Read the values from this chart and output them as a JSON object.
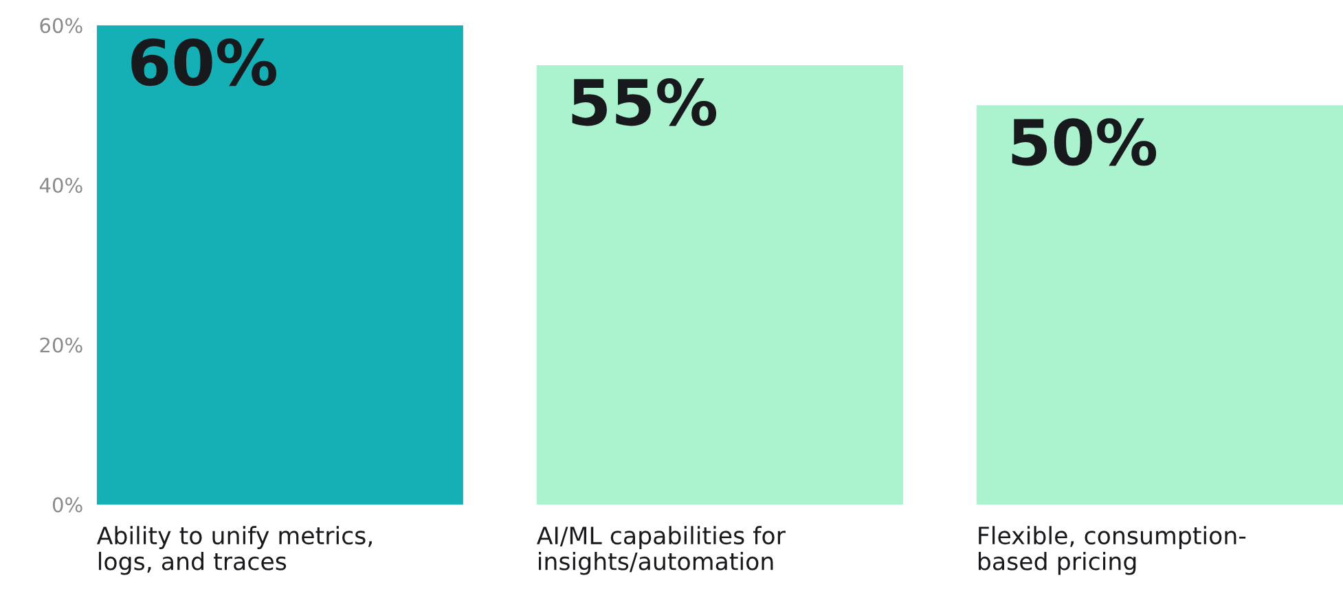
{
  "chart_data": {
    "type": "bar",
    "categories": [
      "Ability to unify metrics,\nlogs, and traces",
      "AI/ML capabilities for\ninsights/automation",
      "Flexible, consumption-\nbased pricing"
    ],
    "values": [
      60,
      55,
      50
    ],
    "colors": [
      "#15b0b5",
      "#abf2cf",
      "#abf2cf"
    ],
    "value_labels": [
      "60%",
      "55%",
      "50%"
    ],
    "ylim": [
      0,
      60
    ],
    "yticks": [
      {
        "value": 0,
        "label": "0%"
      },
      {
        "value": 20,
        "label": "20%"
      },
      {
        "value": 40,
        "label": "40%"
      },
      {
        "value": 60,
        "label": "60%"
      }
    ],
    "grid": false
  }
}
